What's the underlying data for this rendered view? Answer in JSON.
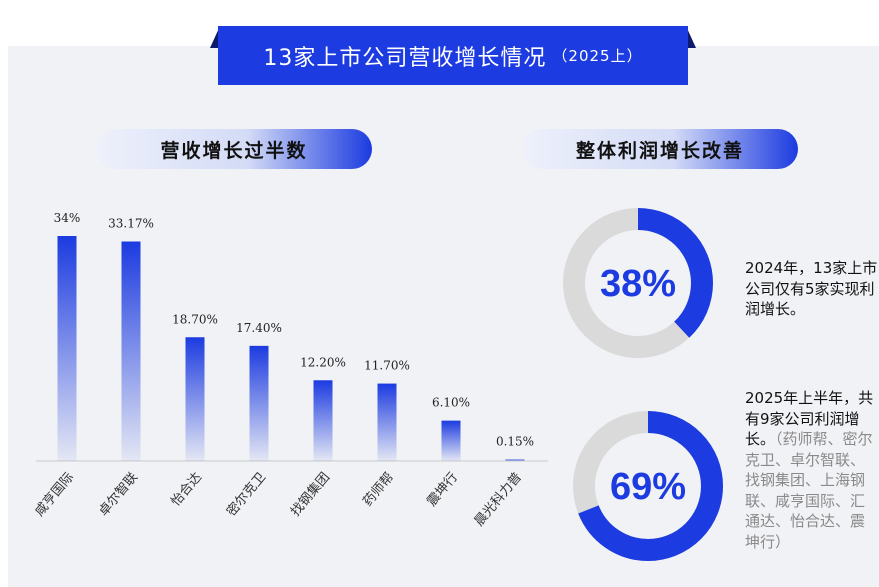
{
  "title": {
    "main": "13家上市公司营收增长情况",
    "sub": "（2025上）"
  },
  "left_panel": {
    "heading": "营收增长过半数"
  },
  "right_panel": {
    "heading": "整体利润增长改善"
  },
  "chart_data": [
    {
      "type": "bar",
      "categories": [
        "咸亨国际",
        "卓尔智联",
        "怡合达",
        "密尔克卫",
        "找钢集团",
        "药师帮",
        "震坤行",
        "晨光科力普"
      ],
      "values": [
        34,
        33.17,
        18.7,
        17.4,
        12.2,
        11.7,
        6.1,
        0.15
      ],
      "value_labels": [
        "34%",
        "33.17%",
        "18.70%",
        "17.40%",
        "12.20%",
        "11.70%",
        "6.10%",
        "0.15%"
      ],
      "ylim": [
        0,
        36
      ],
      "grid": false,
      "color": "#1c3be0"
    },
    {
      "type": "pie",
      "variant": "donut",
      "values": [
        38,
        62
      ],
      "center_label": "38%",
      "colors": [
        "#1c3be0",
        "#dadada"
      ]
    },
    {
      "type": "pie",
      "variant": "donut",
      "values": [
        69,
        31
      ],
      "center_label": "69%",
      "colors": [
        "#1c3be0",
        "#dadada"
      ]
    }
  ],
  "notes": {
    "note1": "2024年，13家上市公司仅有5家实现利润增长。",
    "note2_main": "2025年上半年，共有9家公司利润增长。",
    "note2_detail": "（药师帮、密尔克卫、卓尔智联、找钢集团、上海钢联、咸亨国际、汇通达、怡合达、震坤行）"
  }
}
